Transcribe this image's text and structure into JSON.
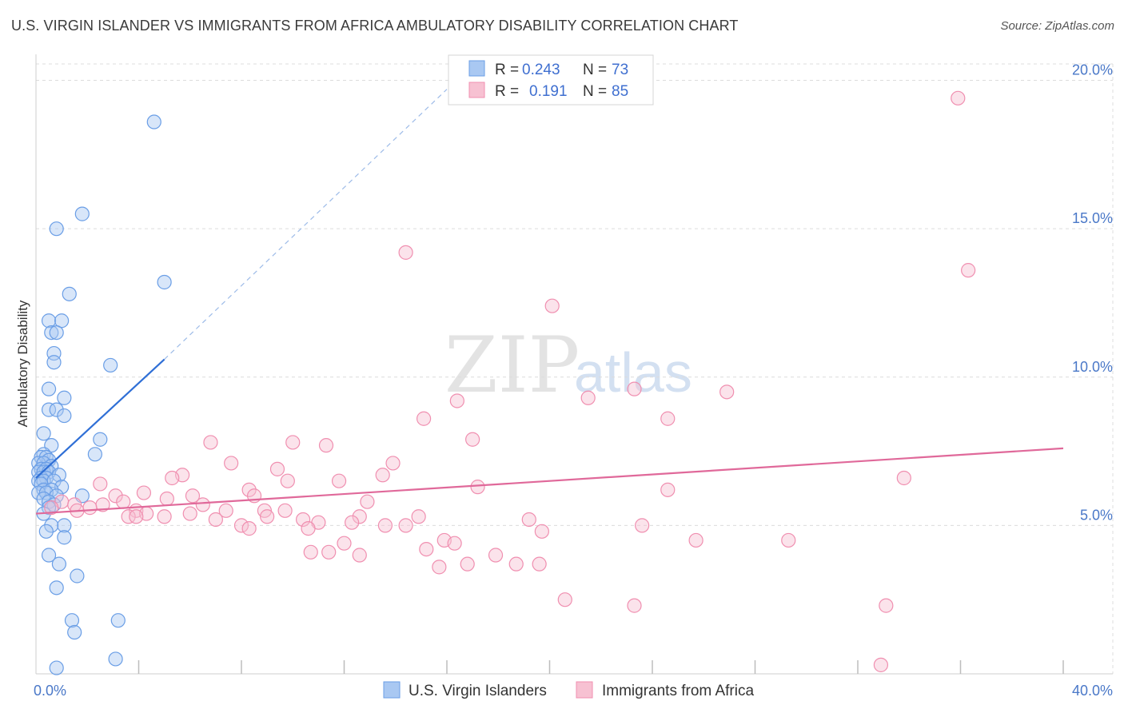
{
  "title": "U.S. VIRGIN ISLANDER VS IMMIGRANTS FROM AFRICA AMBULATORY DISABILITY CORRELATION CHART",
  "source": "Source: ZipAtlas.com",
  "watermark": {
    "zip": "ZIP",
    "atlas": "atlas"
  },
  "legend": {
    "rows": [
      {
        "r_label": "R = ",
        "r_value": "0.243",
        "n_label": "N = ",
        "n_value": "73",
        "color": "#6a9ee6"
      },
      {
        "r_label": "R = ",
        "r_value": "0.191",
        "n_label": "N = ",
        "n_value": "85",
        "color": "#f08fb0"
      }
    ]
  },
  "chart_data": {
    "type": "scatter",
    "title": "U.S. VIRGIN ISLANDER VS IMMIGRANTS FROM AFRICA AMBULATORY DISABILITY CORRELATION CHART",
    "xlabel": "",
    "ylabel": "Ambulatory Disability",
    "xlim": [
      0,
      40
    ],
    "ylim": [
      0,
      20.5
    ],
    "x_tick_labels": [
      "0.0%",
      "40.0%"
    ],
    "y_ticks": [
      5,
      10,
      15,
      20
    ],
    "y_tick_labels": [
      "5.0%",
      "10.0%",
      "15.0%",
      "20.0%"
    ],
    "grid": true,
    "legend_position": "top-center",
    "series": [
      {
        "name": "U.S. Virgin Islanders",
        "color": "#6a9ee6",
        "fill": "#a9c8f2",
        "r": 0.243,
        "n": 73,
        "trend": {
          "x": [
            0.0,
            5.0
          ],
          "y": [
            6.6,
            10.6
          ]
        },
        "trend_extension": {
          "x": [
            5.0,
            16.0
          ],
          "y": [
            10.6,
            19.7
          ]
        },
        "points": [
          [
            4.6,
            18.6
          ],
          [
            1.8,
            15.5
          ],
          [
            0.8,
            15.0
          ],
          [
            5.0,
            13.2
          ],
          [
            1.3,
            12.8
          ],
          [
            0.5,
            11.9
          ],
          [
            1.0,
            11.9
          ],
          [
            0.6,
            11.5
          ],
          [
            0.8,
            11.5
          ],
          [
            0.7,
            10.8
          ],
          [
            0.7,
            10.5
          ],
          [
            2.9,
            10.4
          ],
          [
            0.5,
            9.6
          ],
          [
            1.1,
            9.3
          ],
          [
            0.5,
            8.9
          ],
          [
            0.8,
            8.9
          ],
          [
            1.1,
            8.7
          ],
          [
            0.3,
            8.1
          ],
          [
            2.5,
            7.9
          ],
          [
            0.6,
            7.7
          ],
          [
            2.3,
            7.4
          ],
          [
            0.3,
            7.4
          ],
          [
            0.2,
            7.3
          ],
          [
            0.4,
            7.3
          ],
          [
            0.5,
            7.2
          ],
          [
            0.1,
            7.1
          ],
          [
            0.3,
            7.1
          ],
          [
            0.6,
            7.0
          ],
          [
            0.2,
            6.9
          ],
          [
            0.4,
            6.9
          ],
          [
            0.1,
            6.8
          ],
          [
            0.3,
            6.8
          ],
          [
            0.5,
            6.8
          ],
          [
            0.9,
            6.7
          ],
          [
            0.2,
            6.6
          ],
          [
            0.4,
            6.6
          ],
          [
            0.1,
            6.5
          ],
          [
            0.3,
            6.5
          ],
          [
            0.7,
            6.5
          ],
          [
            0.2,
            6.4
          ],
          [
            1.0,
            6.3
          ],
          [
            0.3,
            6.2
          ],
          [
            0.6,
            6.2
          ],
          [
            0.1,
            6.1
          ],
          [
            0.4,
            6.1
          ],
          [
            1.8,
            6.0
          ],
          [
            0.8,
            6.0
          ],
          [
            0.3,
            5.9
          ],
          [
            0.5,
            5.8
          ],
          [
            0.7,
            5.7
          ],
          [
            0.5,
            5.6
          ],
          [
            0.3,
            5.4
          ],
          [
            0.6,
            5.0
          ],
          [
            1.1,
            5.0
          ],
          [
            0.4,
            4.8
          ],
          [
            1.1,
            4.6
          ],
          [
            0.5,
            4.0
          ],
          [
            0.9,
            3.7
          ],
          [
            1.6,
            3.3
          ],
          [
            0.8,
            2.9
          ],
          [
            1.4,
            1.8
          ],
          [
            3.2,
            1.8
          ],
          [
            1.5,
            1.4
          ],
          [
            3.1,
            0.5
          ],
          [
            0.8,
            0.2
          ]
        ]
      },
      {
        "name": "Immigrants from Africa",
        "color": "#f08fb0",
        "fill": "#f7c1d2",
        "r": 0.191,
        "n": 85,
        "trend": {
          "x": [
            0.0,
            40.0
          ],
          "y": [
            5.4,
            7.6
          ]
        },
        "points": [
          [
            35.9,
            19.4
          ],
          [
            14.4,
            14.2
          ],
          [
            36.3,
            13.6
          ],
          [
            20.1,
            12.4
          ],
          [
            16.4,
            9.2
          ],
          [
            21.5,
            9.3
          ],
          [
            23.3,
            9.6
          ],
          [
            26.9,
            9.5
          ],
          [
            15.1,
            8.6
          ],
          [
            24.6,
            8.6
          ],
          [
            6.8,
            7.8
          ],
          [
            10.0,
            7.8
          ],
          [
            11.3,
            7.7
          ],
          [
            17.0,
            7.9
          ],
          [
            7.6,
            7.1
          ],
          [
            13.9,
            7.1
          ],
          [
            9.4,
            6.9
          ],
          [
            13.5,
            6.7
          ],
          [
            5.7,
            6.7
          ],
          [
            5.3,
            6.6
          ],
          [
            9.8,
            6.5
          ],
          [
            11.8,
            6.5
          ],
          [
            17.2,
            6.3
          ],
          [
            2.5,
            6.4
          ],
          [
            8.3,
            6.2
          ],
          [
            24.6,
            6.2
          ],
          [
            33.8,
            6.6
          ],
          [
            4.2,
            6.1
          ],
          [
            8.5,
            6.0
          ],
          [
            6.1,
            6.0
          ],
          [
            3.1,
            6.0
          ],
          [
            5.1,
            5.9
          ],
          [
            1.0,
            5.8
          ],
          [
            1.5,
            5.7
          ],
          [
            2.6,
            5.7
          ],
          [
            3.4,
            5.8
          ],
          [
            6.5,
            5.7
          ],
          [
            12.9,
            5.8
          ],
          [
            0.6,
            5.6
          ],
          [
            2.1,
            5.6
          ],
          [
            3.9,
            5.5
          ],
          [
            1.6,
            5.5
          ],
          [
            7.4,
            5.5
          ],
          [
            8.9,
            5.5
          ],
          [
            9.7,
            5.5
          ],
          [
            4.3,
            5.4
          ],
          [
            3.6,
            5.3
          ],
          [
            3.9,
            5.3
          ],
          [
            6.0,
            5.4
          ],
          [
            14.9,
            5.3
          ],
          [
            12.6,
            5.3
          ],
          [
            10.4,
            5.2
          ],
          [
            5.0,
            5.3
          ],
          [
            9.0,
            5.3
          ],
          [
            7.0,
            5.2
          ],
          [
            11.0,
            5.1
          ],
          [
            19.2,
            5.2
          ],
          [
            8.0,
            5.0
          ],
          [
            12.3,
            5.1
          ],
          [
            13.6,
            5.0
          ],
          [
            14.4,
            5.0
          ],
          [
            8.3,
            4.9
          ],
          [
            10.6,
            4.9
          ],
          [
            23.6,
            5.0
          ],
          [
            19.7,
            4.8
          ],
          [
            15.9,
            4.5
          ],
          [
            16.3,
            4.4
          ],
          [
            12.0,
            4.4
          ],
          [
            15.2,
            4.2
          ],
          [
            25.7,
            4.5
          ],
          [
            29.3,
            4.5
          ],
          [
            10.7,
            4.1
          ],
          [
            11.4,
            4.1
          ],
          [
            12.6,
            4.0
          ],
          [
            17.9,
            4.0
          ],
          [
            15.7,
            3.6
          ],
          [
            16.8,
            3.7
          ],
          [
            18.7,
            3.7
          ],
          [
            19.6,
            3.7
          ],
          [
            20.6,
            2.5
          ],
          [
            23.3,
            2.3
          ],
          [
            33.1,
            2.3
          ],
          [
            32.9,
            0.3
          ]
        ]
      }
    ]
  }
}
